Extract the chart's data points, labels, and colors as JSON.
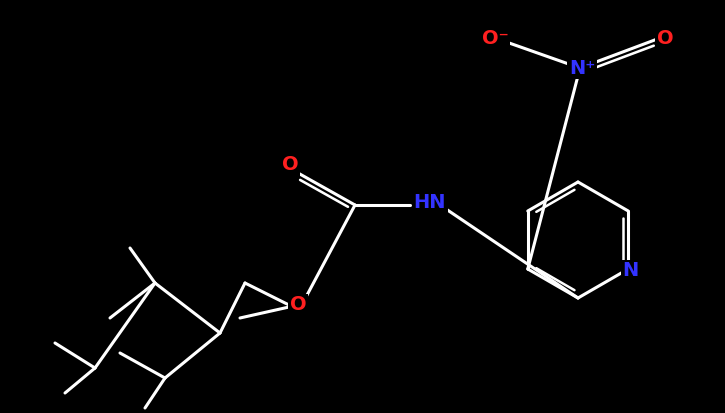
{
  "background_color": "#000000",
  "bond_col": "#ffffff",
  "O_col": "#ff2020",
  "N_col": "#3333ff",
  "lw": 2.2,
  "lw2": 1.8,
  "fs": 14,
  "fig_width": 7.25,
  "fig_height": 4.13,
  "dpi": 100,
  "xlim": [
    0,
    725
  ],
  "ylim": [
    0,
    413
  ]
}
